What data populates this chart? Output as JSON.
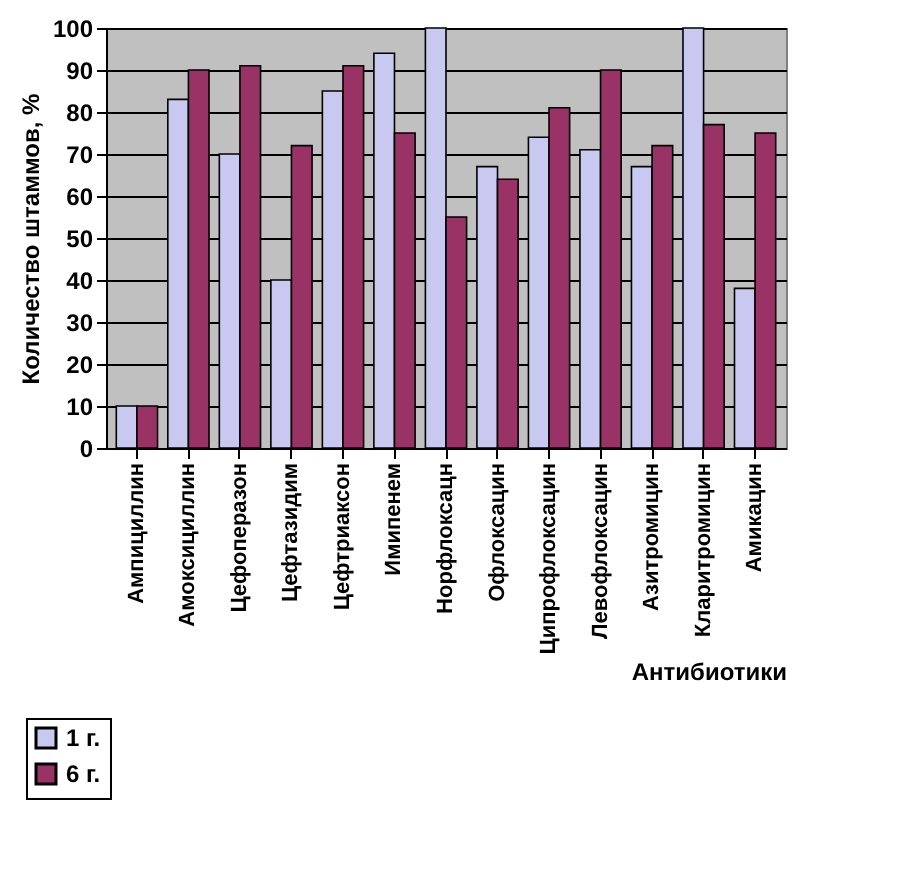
{
  "chart_data": {
    "type": "bar",
    "xlabel": "Антибиотики",
    "ylabel": "Количество штаммов, %",
    "categories": [
      "Ампициллин",
      "Амоксициллин",
      "Цефоперазон",
      "Цефтазидим",
      "Цефтриаксон",
      "Имипенем",
      "Норфлоксацн",
      "Офлоксацин",
      "Ципрофлоксацин",
      "Левофлоксацин",
      "Азитромицин",
      "Кларитромицин",
      "Амикацин"
    ],
    "series": [
      {
        "name": "1 г.",
        "color": "#c8c8f0",
        "values": [
          10,
          83,
          70,
          40,
          85,
          94,
          100,
          67,
          74,
          71,
          67,
          100,
          38
        ]
      },
      {
        "name": "6 г.",
        "color": "#993366",
        "values": [
          10,
          90,
          91,
          72,
          91,
          75,
          55,
          64,
          81,
          90,
          72,
          77,
          75
        ]
      }
    ],
    "ylim": [
      0,
      100
    ],
    "yticks": [
      0,
      10,
      20,
      30,
      40,
      50,
      60,
      70,
      80,
      90,
      100
    ],
    "grid": "y",
    "legend": "bottom left"
  }
}
